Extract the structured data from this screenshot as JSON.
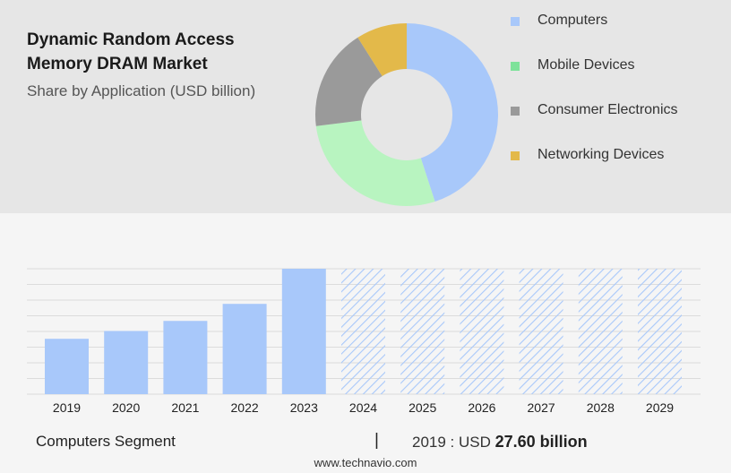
{
  "header": {
    "title": "Dynamic Random Access Memory DRAM Market",
    "subtitle": "Share by Application (USD billion)"
  },
  "legend": {
    "items": [
      {
        "label": "Computers",
        "color": "#a8c8fa"
      },
      {
        "label": "Mobile Devices",
        "color": "#7ee29a"
      },
      {
        "label": "Consumer Electronics",
        "color": "#9a9a9a"
      },
      {
        "label": "Networking Devices",
        "color": "#e3b94a"
      }
    ]
  },
  "footer": {
    "segment": "Computers Segment",
    "separator": "|",
    "year_prefix": "2019 : USD",
    "value": "27.60 billion",
    "site": "www.technavio.com"
  },
  "chart_data": [
    {
      "type": "pie",
      "donut": true,
      "slices": [
        {
          "label": "Computers",
          "value": 45,
          "color": "#a8c8fa"
        },
        {
          "label": "Mobile Devices",
          "value": 28,
          "color": "#b8f4c0"
        },
        {
          "label": "Consumer Electronics",
          "value": 18,
          "color": "#9a9a9a"
        },
        {
          "label": "Networking Devices",
          "value": 9,
          "color": "#e3b94a"
        }
      ]
    },
    {
      "type": "bar",
      "categories": [
        "2019",
        "2020",
        "2021",
        "2022",
        "2023",
        "2024",
        "2025",
        "2026",
        "2027",
        "2028",
        "2029"
      ],
      "values": [
        27.6,
        31.5,
        36.5,
        45.0,
        62.5,
        62.5,
        62.5,
        62.5,
        62.5,
        62.5,
        62.5
      ],
      "forecast_from": "2024",
      "ylim": [
        0,
        62.5
      ],
      "grid": true,
      "color": "#a8c8fa"
    }
  ]
}
